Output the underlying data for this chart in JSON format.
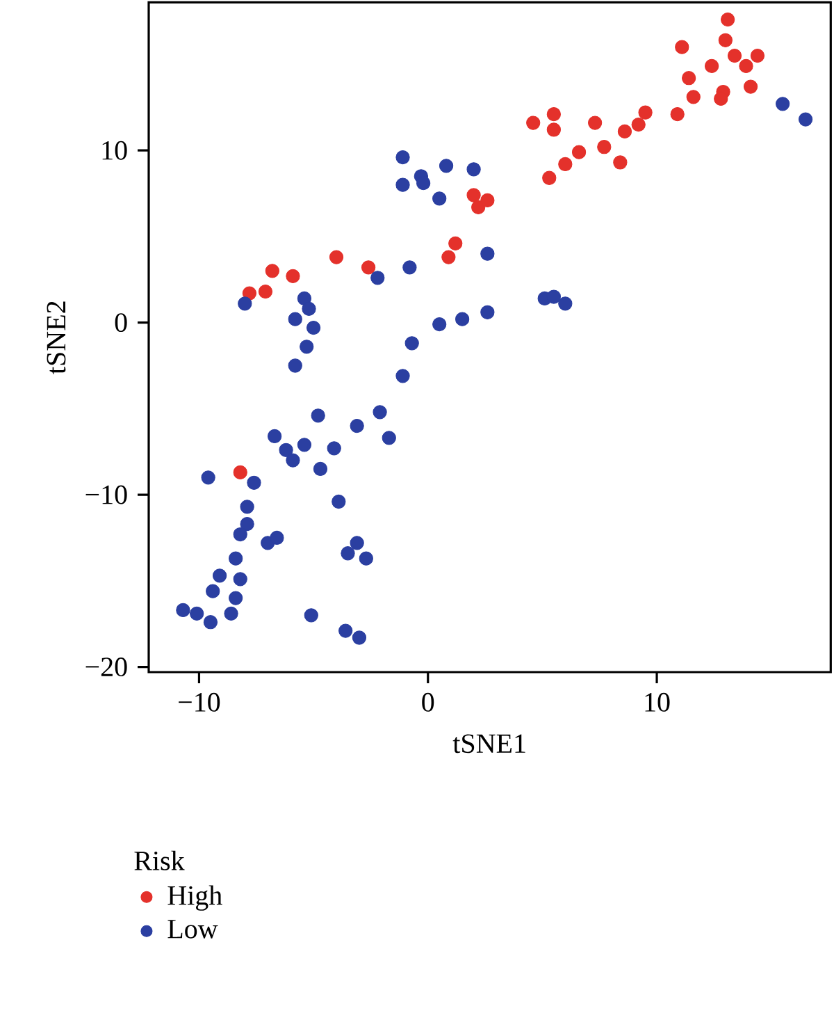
{
  "chart_data": {
    "type": "scatter",
    "xlabel": "tSNE1",
    "ylabel": "tSNE2",
    "legend_title": "Risk",
    "legend": "bottom left",
    "marker": "circle",
    "xlim": [
      -12.2,
      17.6
    ],
    "ylim": [
      -20.3,
      18.6
    ],
    "xticks": [
      {
        "value": -10,
        "label": "−10"
      },
      0,
      10
    ],
    "yticks": [
      {
        "value": -20,
        "label": "−20"
      },
      {
        "value": -10,
        "label": "−10"
      },
      0,
      10
    ],
    "series": [
      {
        "name": "High",
        "color": "#e4312b",
        "x": [
          13.1,
          11.1,
          13.0,
          13.4,
          14.4,
          13.9,
          12.4,
          11.4,
          14.1,
          11.6,
          12.9,
          12.8,
          10.9,
          9.5,
          9.2,
          8.6,
          8.4,
          7.7,
          7.3,
          6.6,
          6.0,
          5.3,
          5.5,
          5.5,
          4.6,
          2.0,
          2.2,
          2.6,
          0.9,
          1.2,
          -4.0,
          -2.6,
          -6.8,
          -5.9,
          -7.8,
          -7.1,
          -8.2
        ],
        "values": [
          17.6,
          16.0,
          16.4,
          15.5,
          15.5,
          14.9,
          14.9,
          14.2,
          13.7,
          13.1,
          13.4,
          13.0,
          12.1,
          12.2,
          11.5,
          11.1,
          9.3,
          10.2,
          11.6,
          9.9,
          9.2,
          8.4,
          12.1,
          11.2,
          11.6,
          7.4,
          6.7,
          7.1,
          3.8,
          4.6,
          3.8,
          3.2,
          3.0,
          2.7,
          1.7,
          1.8,
          -8.7
        ]
      },
      {
        "name": "Low",
        "color": "#2b3fa1",
        "x": [
          2.0,
          2.6,
          5.1,
          5.5,
          6.0,
          2.6,
          1.5,
          15.5,
          16.5,
          -1.1,
          -1.1,
          -0.3,
          -0.2,
          0.8,
          0.5,
          -0.8,
          -2.2,
          -8.0,
          -5.4,
          -5.2,
          -5.8,
          -5.0,
          0.5,
          -5.3,
          -5.8,
          -0.7,
          -1.1,
          -4.8,
          -6.7,
          -6.2,
          -5.9,
          -5.4,
          -4.1,
          -4.7,
          -3.1,
          -2.1,
          -1.7,
          -9.6,
          -7.6,
          -7.9,
          -7.9,
          -8.2,
          -7.0,
          -6.6,
          -3.9,
          -3.1,
          -3.5,
          -2.7,
          -8.4,
          -9.1,
          -8.2,
          -9.4,
          -8.4,
          -10.7,
          -10.1,
          -9.5,
          -8.6,
          -5.1,
          -3.6,
          -3.0
        ],
        "values": [
          8.9,
          4.0,
          1.4,
          1.5,
          1.1,
          0.6,
          0.2,
          12.7,
          11.8,
          9.6,
          8.0,
          8.5,
          8.1,
          9.1,
          7.2,
          3.2,
          2.6,
          1.1,
          1.4,
          0.8,
          0.2,
          -0.3,
          -0.1,
          -1.4,
          -2.5,
          -1.2,
          -3.1,
          -5.4,
          -6.6,
          -7.4,
          -8.0,
          -7.1,
          -7.3,
          -8.5,
          -6.0,
          -5.2,
          -6.7,
          -9.0,
          -9.3,
          -10.7,
          -11.7,
          -12.3,
          -12.8,
          -12.5,
          -10.4,
          -12.8,
          -13.4,
          -13.7,
          -13.7,
          -14.7,
          -14.9,
          -15.6,
          -16.0,
          -16.7,
          -16.9,
          -17.4,
          -16.9,
          -17.0,
          -17.9,
          -18.3
        ]
      }
    ]
  }
}
